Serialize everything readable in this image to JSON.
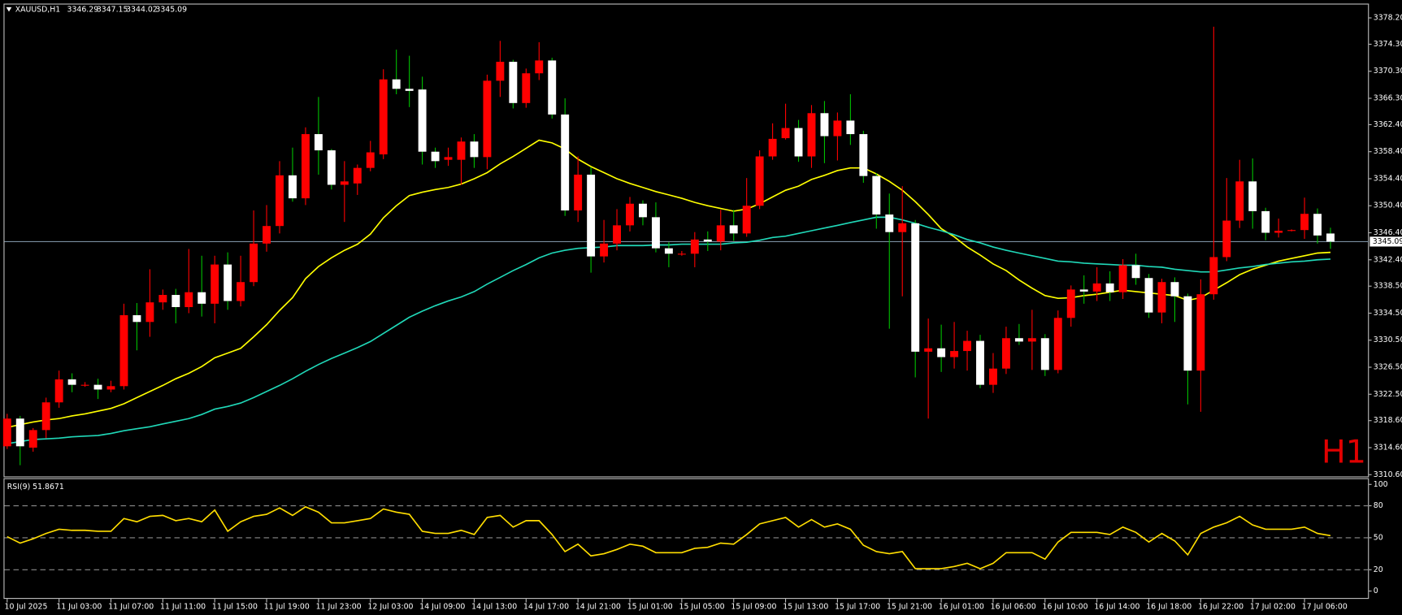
{
  "chart_data": [
    {
      "type": "candlestick",
      "title": "XAUUSD,H1",
      "header_values": [
        3346.29,
        3347.15,
        3344.02,
        3345.09
      ],
      "watermark": "H1",
      "categories": [
        "10 Jul 2025",
        null,
        null,
        null,
        "11 Jul 03:00",
        null,
        null,
        null,
        "11 Jul 07:00",
        null,
        null,
        null,
        "11 Jul 11:00",
        null,
        null,
        null,
        "11 Jul 15:00",
        null,
        null,
        null,
        "11 Jul 19:00",
        null,
        null,
        null,
        "11 Jul 23:00",
        null,
        null,
        null,
        "12 Jul 03:00",
        null,
        null,
        null,
        "14 Jul 09:00",
        null,
        null,
        null,
        "14 Jul 13:00",
        null,
        null,
        null,
        "14 Jul 17:00",
        null,
        null,
        null,
        "14 Jul 21:00",
        null,
        null,
        null,
        "15 Jul 01:00",
        null,
        null,
        null,
        "15 Jul 05:00",
        null,
        null,
        null,
        "15 Jul 09:00",
        null,
        null,
        null,
        "15 Jul 13:00",
        null,
        null,
        null,
        "15 Jul 17:00",
        null,
        null,
        null,
        "15 Jul 21:00",
        null,
        null,
        null,
        "16 Jul 01:00",
        null,
        null,
        null,
        "16 Jul 06:00",
        null,
        null,
        null,
        "16 Jul 10:00",
        null,
        null,
        null,
        "16 Jul 14:00",
        null,
        null,
        null,
        "16 Jul 18:00",
        null,
        null,
        null,
        "16 Jul 22:00",
        null,
        null,
        null,
        "17 Jul 02:00",
        null,
        null,
        null,
        "17 Jul 06:00",
        null,
        null
      ],
      "open": [
        3314.8,
        3318.9,
        3314.6,
        3317.2,
        3321.3,
        3324.7,
        3323.9,
        3323.9,
        3323.2,
        3323.7,
        3334.2,
        3333.2,
        3336.1,
        3337.2,
        3335.4,
        3337.6,
        3335.9,
        3341.7,
        3336.3,
        3339.1,
        3344.8,
        3347.4,
        3354.9,
        3351.5,
        3361.0,
        3358.6,
        3353.5,
        3353.7,
        3356.0,
        3358.0,
        3369.1,
        3367.7,
        3367.6,
        3358.4,
        3357.2,
        3357.2,
        3359.9,
        3357.6,
        3368.9,
        3371.7,
        3365.6,
        3370.0,
        3371.9,
        3363.9,
        3349.7,
        3355.0,
        3342.9,
        3344.8,
        3347.5,
        3350.7,
        3348.7,
        3344.1,
        3343.3,
        3343.3,
        3345.4,
        3345.1,
        3347.5,
        3346.3,
        3350.4,
        3357.7,
        3360.4,
        3361.9,
        3357.7,
        3364.1,
        3360.7,
        3363.0,
        3361.0,
        3354.8,
        3349.1,
        3346.5,
        3347.8,
        3328.8,
        3329.3,
        3328.0,
        3328.9,
        3330.4,
        3323.9,
        3326.3,
        3330.8,
        3330.3,
        3330.8,
        3326.1,
        3333.8,
        3338.0,
        3337.7,
        3338.9,
        3337.6,
        3341.6,
        3339.7,
        3334.6,
        3339.1,
        3337.0,
        3326.0,
        3337.3,
        3342.8,
        3348.2,
        3354.0,
        3349.6,
        3346.4,
        3346.8,
        3346.8,
        3349.2,
        3346.29
      ],
      "high": [
        3319.6,
        3319.3,
        3317.5,
        3322.0,
        3326.0,
        3325.6,
        3324.3,
        3324.8,
        3324.5,
        3335.9,
        3336.0,
        3341.0,
        3338.0,
        3338.1,
        3344.0,
        3343.0,
        3343.0,
        3343.5,
        3343.0,
        3349.7,
        3350.5,
        3357.0,
        3359.0,
        3362.0,
        3366.5,
        3358.8,
        3357.0,
        3356.5,
        3360.0,
        3370.6,
        3373.5,
        3372.6,
        3369.5,
        3359.0,
        3359.0,
        3360.5,
        3361.0,
        3369.8,
        3374.8,
        3372.0,
        3370.7,
        3374.6,
        3372.3,
        3366.3,
        3357.7,
        3356.1,
        3348.3,
        3349.9,
        3351.7,
        3351.2,
        3350.9,
        3345.0,
        3343.7,
        3346.5,
        3346.6,
        3349.8,
        3349.8,
        3354.5,
        3358.6,
        3362.6,
        3365.5,
        3363.1,
        3365.3,
        3365.9,
        3364.2,
        3366.9,
        3361.5,
        3355.2,
        3352.2,
        3353.3,
        3348.3,
        3333.7,
        3332.8,
        3333.2,
        3331.9,
        3331.3,
        3328.6,
        3332.5,
        3332.9,
        3335.0,
        3331.4,
        3334.9,
        3338.6,
        3340.1,
        3341.3,
        3340.7,
        3342.5,
        3343.3,
        3340.3,
        3339.6,
        3339.8,
        3337.4,
        3339.5,
        3376.9,
        3354.5,
        3357.2,
        3357.4,
        3350.1,
        3348.5,
        3346.9,
        3351.6,
        3350.0,
        3347.15
      ],
      "low": [
        3314.4,
        3312.0,
        3314.0,
        3316.0,
        3320.5,
        3322.8,
        3323.6,
        3321.8,
        3322.8,
        3323.2,
        3329.0,
        3331.0,
        3335.0,
        3333.0,
        3334.5,
        3334.0,
        3333.0,
        3335.0,
        3335.5,
        3338.5,
        3343.6,
        3346.3,
        3351.0,
        3350.5,
        3355.0,
        3352.8,
        3348.0,
        3352.0,
        3355.5,
        3357.3,
        3366.9,
        3365.0,
        3356.5,
        3356.0,
        3356.3,
        3353.5,
        3356.0,
        3355.8,
        3366.5,
        3364.8,
        3364.9,
        3369.0,
        3363.3,
        3348.9,
        3348.0,
        3340.5,
        3342.0,
        3343.8,
        3346.6,
        3347.5,
        3343.5,
        3341.3,
        3343.0,
        3341.3,
        3343.7,
        3343.8,
        3345.2,
        3345.8,
        3349.9,
        3357.2,
        3360.2,
        3356.9,
        3356.0,
        3356.7,
        3357.1,
        3359.4,
        3353.8,
        3347.0,
        3332.2,
        3337.0,
        3325.0,
        3318.9,
        3325.8,
        3326.3,
        3326.0,
        3323.4,
        3322.7,
        3325.5,
        3329.8,
        3326.1,
        3325.2,
        3325.6,
        3332.5,
        3335.9,
        3336.3,
        3336.3,
        3336.6,
        3338.7,
        3333.8,
        3333.0,
        3333.2,
        3321.0,
        3319.9,
        3336.5,
        3342.2,
        3347.1,
        3347.0,
        3345.3,
        3345.7,
        3346.6,
        3345.5,
        3344.8,
        3344.02
      ],
      "close": [
        3318.9,
        3314.8,
        3317.2,
        3321.3,
        3324.7,
        3323.9,
        3323.9,
        3323.2,
        3323.7,
        3334.2,
        3333.2,
        3336.1,
        3337.2,
        3335.4,
        3337.6,
        3335.9,
        3341.7,
        3336.3,
        3339.1,
        3344.8,
        3347.4,
        3354.9,
        3351.5,
        3361.0,
        3358.6,
        3353.5,
        3354.0,
        3356.0,
        3358.3,
        3369.1,
        3367.7,
        3367.4,
        3358.4,
        3357.0,
        3357.6,
        3359.9,
        3357.6,
        3368.9,
        3371.7,
        3365.6,
        3370.0,
        3371.9,
        3363.9,
        3349.7,
        3355.0,
        3342.9,
        3344.8,
        3347.5,
        3350.7,
        3348.7,
        3344.1,
        3343.3,
        3343.3,
        3345.4,
        3345.1,
        3347.5,
        3346.3,
        3350.4,
        3357.7,
        3360.3,
        3361.9,
        3357.7,
        3364.1,
        3360.7,
        3363.0,
        3361.0,
        3354.8,
        3349.1,
        3346.5,
        3347.8,
        3328.8,
        3329.3,
        3328.0,
        3328.9,
        3330.4,
        3323.9,
        3326.3,
        3330.8,
        3330.3,
        3330.8,
        3326.1,
        3333.8,
        3338.0,
        3337.7,
        3338.9,
        3337.6,
        3341.6,
        3339.7,
        3334.6,
        3339.1,
        3337.0,
        3326.0,
        3337.3,
        3342.8,
        3348.2,
        3354.0,
        3349.6,
        3346.4,
        3346.7,
        3346.8,
        3349.2,
        3346.0,
        3345.09
      ],
      "up_color": "#ff0000",
      "down_color": "#ffffff",
      "up_wick_color": "#ff0000",
      "down_wick_color": "#00c000",
      "overlays": [
        {
          "color": "#ffff00",
          "values": [
            3317.6,
            3318.0,
            3318.4,
            3318.7,
            3318.9,
            3319.3,
            3319.6,
            3320.0,
            3320.4,
            3321.1,
            3322.0,
            3322.9,
            3323.8,
            3324.8,
            3325.6,
            3326.6,
            3327.9,
            3328.6,
            3329.3,
            3331.0,
            3332.8,
            3334.9,
            3336.8,
            3339.6,
            3341.4,
            3342.7,
            3343.8,
            3344.7,
            3346.2,
            3348.6,
            3350.4,
            3351.9,
            3352.4,
            3352.8,
            3353.1,
            3353.6,
            3354.4,
            3355.3,
            3356.6,
            3357.7,
            3358.9,
            3360.1,
            3359.7,
            3358.8,
            3357.3,
            3356.2,
            3355.3,
            3354.4,
            3353.7,
            3353.1,
            3352.5,
            3352.0,
            3351.5,
            3350.9,
            3350.4,
            3350.0,
            3349.6,
            3349.9,
            3350.7,
            3351.7,
            3352.7,
            3353.3,
            3354.3,
            3354.9,
            3355.6,
            3356.0,
            3356.0,
            3355.1,
            3354.0,
            3352.7,
            3351.0,
            3349.1,
            3347.0,
            3345.8,
            3344.3,
            3343.1,
            3341.8,
            3340.8,
            3339.4,
            3338.2,
            3337.1,
            3336.7,
            3336.8,
            3337.1,
            3337.3,
            3337.6,
            3337.9,
            3337.7,
            3337.5,
            3337.3,
            3337.1,
            3336.4,
            3336.8,
            3337.9,
            3339.0,
            3340.2,
            3341.0,
            3341.6,
            3342.2,
            3342.6,
            3343.0,
            3343.4,
            3343.5
          ]
        },
        {
          "color": "#20d8b8",
          "values": [
            3315.2,
            3315.5,
            3315.8,
            3315.9,
            3316.0,
            3316.2,
            3316.3,
            3316.4,
            3316.7,
            3317.1,
            3317.4,
            3317.7,
            3318.1,
            3318.5,
            3318.9,
            3319.5,
            3320.3,
            3320.7,
            3321.2,
            3322.0,
            3322.9,
            3323.8,
            3324.8,
            3325.9,
            3326.9,
            3327.8,
            3328.6,
            3329.4,
            3330.3,
            3331.5,
            3332.7,
            3333.9,
            3334.8,
            3335.6,
            3336.3,
            3336.9,
            3337.7,
            3338.8,
            3339.8,
            3340.8,
            3341.7,
            3342.7,
            3343.4,
            3343.8,
            3344.1,
            3344.2,
            3344.3,
            3344.5,
            3344.5,
            3344.5,
            3344.6,
            3344.6,
            3344.7,
            3344.7,
            3344.7,
            3344.7,
            3344.9,
            3345.0,
            3345.3,
            3345.7,
            3345.9,
            3346.3,
            3346.7,
            3347.1,
            3347.5,
            3347.9,
            3348.3,
            3348.7,
            3348.7,
            3348.3,
            3347.8,
            3347.2,
            3346.7,
            3346.1,
            3345.4,
            3344.9,
            3344.3,
            3343.8,
            3343.4,
            3343.0,
            3342.6,
            3342.2,
            3342.1,
            3341.9,
            3341.8,
            3341.7,
            3341.6,
            3341.6,
            3341.4,
            3341.3,
            3341.0,
            3340.8,
            3340.6,
            3340.6,
            3340.9,
            3341.2,
            3341.4,
            3341.7,
            3341.9,
            3342.1,
            3342.2,
            3342.4,
            3342.5
          ]
        }
      ],
      "current_price": 3345.09,
      "price_line_color": "#7a8ea0",
      "ylim": [
        3310.34,
        3380.18
      ],
      "yticks": [
        {
          "value": 3378.2,
          "label": "3378.20"
        },
        {
          "value": 3374.3,
          "label": "3374.30"
        },
        {
          "value": 3370.3,
          "label": "3370.30"
        },
        {
          "value": 3366.3,
          "label": "3366.30"
        },
        {
          "value": 3362.4,
          "label": "3362.40"
        },
        {
          "value": 3358.4,
          "label": "3358.40"
        },
        {
          "value": 3354.4,
          "label": "3354.40"
        },
        {
          "value": 3350.4,
          "label": "3350.40"
        },
        {
          "value": 3346.4,
          "label": "3346.40"
        },
        {
          "value": 3342.4,
          "label": "3342.40"
        },
        {
          "value": 3338.5,
          "label": "3338.50"
        },
        {
          "value": 3334.5,
          "label": "3334.50"
        },
        {
          "value": 3330.5,
          "label": "3330.50"
        },
        {
          "value": 3326.5,
          "label": "3326.50"
        },
        {
          "value": 3322.5,
          "label": "3322.50"
        },
        {
          "value": 3318.6,
          "label": "3318.60"
        },
        {
          "value": 3314.6,
          "label": "3314.60"
        },
        {
          "value": 3310.6,
          "label": "3310.60"
        }
      ],
      "grid": false
    },
    {
      "type": "line",
      "title": "RSI(9) 51.8671",
      "color": "#ffdd00",
      "values": [
        51,
        45,
        49,
        54,
        58,
        57,
        57,
        56,
        56,
        68,
        65,
        70,
        71,
        66,
        68,
        65,
        76,
        56,
        65,
        70,
        72,
        78,
        71,
        79,
        74,
        64,
        64,
        66,
        68,
        77,
        74,
        72,
        56,
        54,
        54,
        57,
        53,
        69,
        71,
        60,
        66,
        66,
        53,
        37,
        44,
        33,
        35,
        39,
        44,
        42,
        36,
        36,
        36,
        40,
        41,
        45,
        44,
        53,
        63,
        66,
        69,
        60,
        67,
        60,
        63,
        58,
        43,
        37,
        35,
        37,
        21,
        21,
        21,
        23,
        26,
        21,
        26,
        36,
        36,
        36,
        30,
        46,
        55,
        55,
        55,
        53,
        60,
        55,
        46,
        54,
        47,
        34,
        54,
        60,
        64,
        70,
        62,
        58,
        58,
        58,
        60,
        54,
        52
      ],
      "ylim": [
        -6.5,
        105
      ],
      "yticks": [
        100,
        80,
        50,
        20,
        0
      ],
      "levels": [
        80,
        50,
        20
      ],
      "level_color": "#8a8a8a"
    }
  ]
}
